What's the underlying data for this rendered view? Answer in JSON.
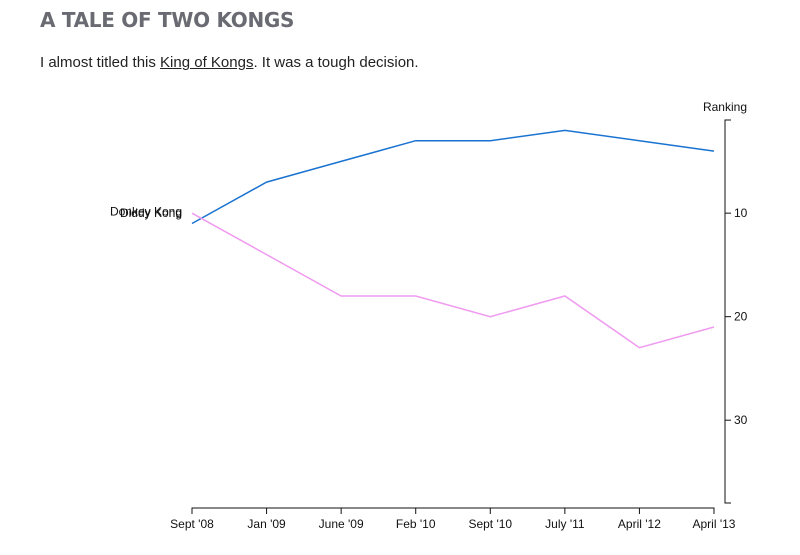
{
  "page": {
    "title": "A TALE OF TWO KONGS",
    "subtitle_before": "I almost titled this ",
    "subtitle_link": "King of Kongs",
    "subtitle_after": ". It was a tough decision."
  },
  "chart_data": {
    "type": "line",
    "categories": [
      "Sept '08",
      "Jan '09",
      "June '09",
      "Feb '10",
      "Sept '10",
      "July '11",
      "April '12",
      "April '13"
    ],
    "series": [
      {
        "name": "Donkey Kong",
        "values": [
          11,
          7,
          5,
          3,
          3,
          2,
          3,
          4
        ],
        "color": "#1a73d0"
      },
      {
        "name": "Diddy Kong",
        "values": [
          10,
          14,
          18,
          18,
          20,
          18,
          23,
          21
        ],
        "color": "#f09af0"
      }
    ],
    "ylabel": "Ranking",
    "ylim": [
      1,
      38
    ],
    "y_inverted": true,
    "yticks": [
      10,
      20,
      30
    ],
    "grid": false,
    "legend": "series labels at left start of lines"
  }
}
